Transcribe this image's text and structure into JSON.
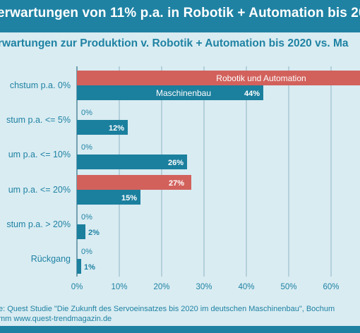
{
  "title": "erwartungen von 11% p.a. in Robotik + Automation bis 20",
  "subtitle": "rwartungen zur Produktion v. Robotik + Automation bis 2020 vs. Ma",
  "source_lines": [
    "e: Quest Studie \"Die Zukunft des Servoeinsatzes bis 2020 im  deutschen Maschinenbau\", Bochum",
    "mm  www.quest-trendmagazin.de"
  ],
  "colors": {
    "background": "#d9ecf2",
    "header": "#1f82a3",
    "robotik": "#d2615c",
    "maschinenbau": "#1b7f9e",
    "grid": "#8fb3c2"
  },
  "chart_data": {
    "type": "bar",
    "orientation": "horizontal",
    "categories": [
      "chstum p.a. 0%",
      "stum p.a. <= 5%",
      "um p.a. <= 10%",
      "um p.a. <= 20%",
      "stum p.a. > 20%",
      "Rückgang"
    ],
    "series": [
      {
        "name": "Robotik und Automation",
        "values": [
          null,
          0,
          0,
          27,
          0,
          0
        ],
        "labels": [
          "",
          "0%",
          "0%",
          "27%",
          "0%",
          "0%"
        ]
      },
      {
        "name": "Maschinenbau",
        "values": [
          44,
          12,
          26,
          15,
          2,
          1
        ],
        "labels": [
          "44%",
          "12%",
          "26%",
          "15%",
          "2%",
          "1%"
        ]
      }
    ],
    "xlim": [
      0,
      70
    ],
    "xticks": [
      "0%",
      "10%",
      "20%",
      "30%",
      "40%",
      "50%",
      "60%"
    ],
    "grid": true,
    "legend": "inside-bars"
  }
}
